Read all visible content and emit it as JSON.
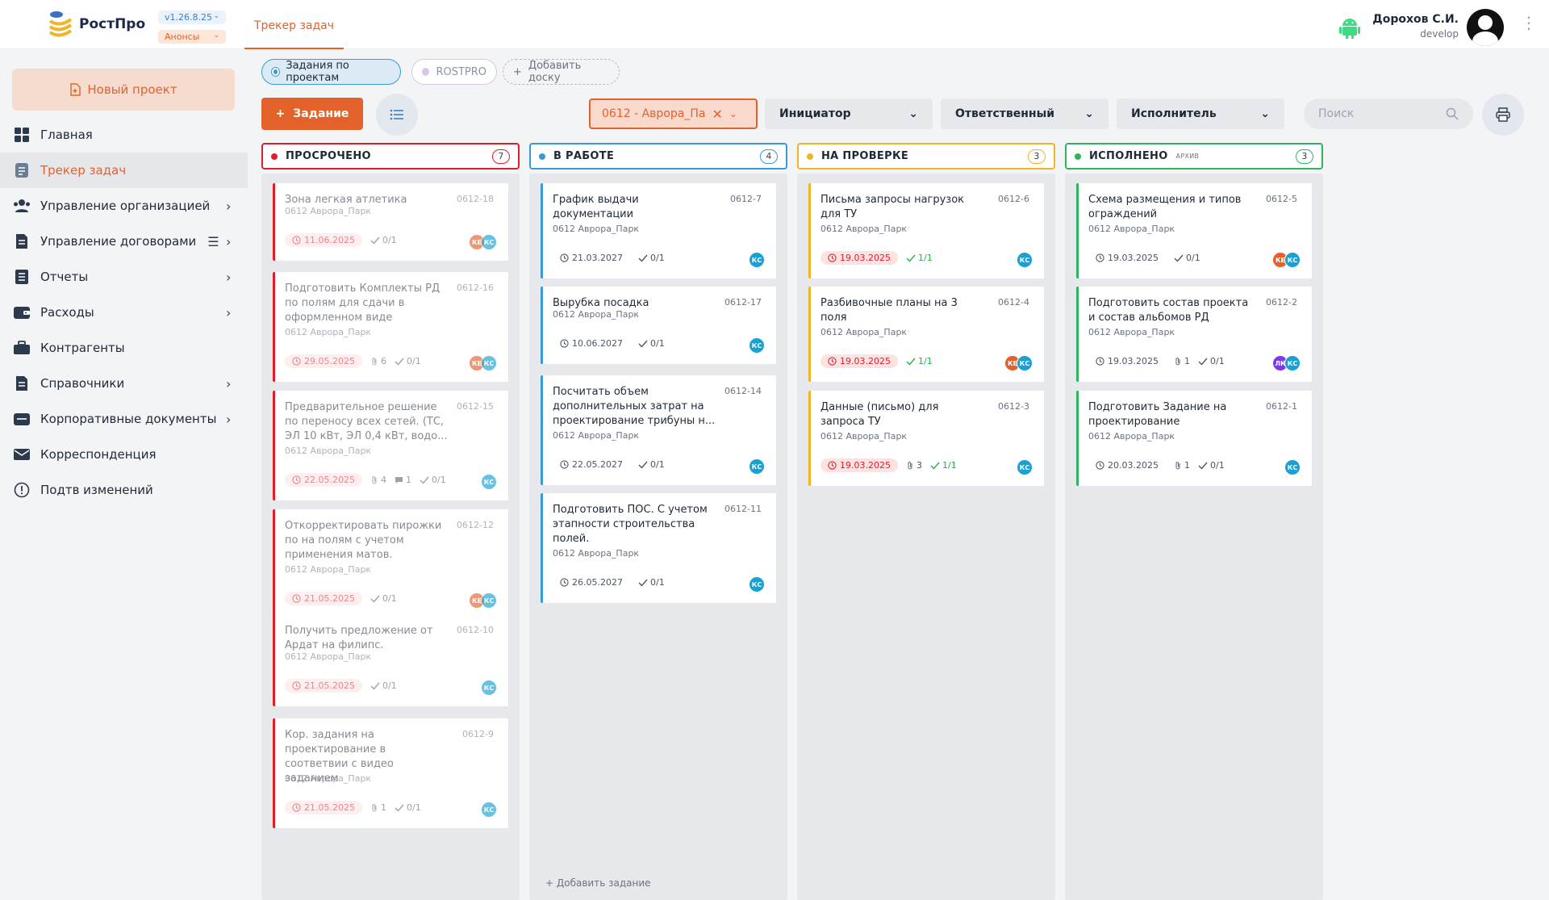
{
  "header": {
    "logo_text": "РостПро",
    "version": "v1.26.8.25",
    "announcements": "Анонсы",
    "tab": "Трекер задач",
    "user_name": "Дорохов С.И.",
    "user_role": "develop"
  },
  "sidebar": {
    "new_project": "Новый проект",
    "items": [
      {
        "label": "Главная",
        "icon": "grid-icon",
        "chevron": false
      },
      {
        "label": "Трекер задач",
        "icon": "tracker-icon",
        "chevron": false,
        "active": true
      },
      {
        "label": "Управление организацией",
        "icon": "users-icon",
        "chevron": true
      },
      {
        "label": "Управление договорами",
        "icon": "contracts-icon",
        "chevron": true,
        "extra_icon": "list-icon"
      },
      {
        "label": "Отчеты",
        "icon": "reports-icon",
        "chevron": true
      },
      {
        "label": "Расходы",
        "icon": "wallet-icon",
        "chevron": true
      },
      {
        "label": "Контрагенты",
        "icon": "briefcase-icon",
        "chevron": false
      },
      {
        "label": "Справочники",
        "icon": "book-icon",
        "chevron": true
      },
      {
        "label": "Корпоративные документы",
        "icon": "folder-icon",
        "chevron": true
      },
      {
        "label": "Корреспонденция",
        "icon": "mail-icon",
        "chevron": false
      },
      {
        "label": "Подтв изменений",
        "icon": "alert-icon",
        "chevron": false
      }
    ]
  },
  "boards": {
    "chips": [
      "Задания по проектам",
      "ROSTPRO",
      "Добавить доску"
    ]
  },
  "toolbar": {
    "add_task": "Задание",
    "project_filter": "0612 - Аврора_Па",
    "initiator": "Инициатор",
    "responsible": "Ответственный",
    "executor": "Исполнитель",
    "search_placeholder": "Поиск"
  },
  "colors": {
    "accent": "#e2622a",
    "overdue": "#e11d2a",
    "in_progress": "#3a9ad6",
    "review": "#f0b429",
    "done": "#2bb65e"
  },
  "columns": [
    {
      "title": "ПРОСРОЧЕНО",
      "count": "7",
      "color": "#e11d2a",
      "faded": true,
      "cards": [
        {
          "title": "Зона легкая атлетика",
          "code": "0612-18",
          "project": "0612 Аврора_Парк",
          "date": "11.06.2025",
          "date_red": true,
          "attach": "",
          "comments": "",
          "checks": "0/1",
          "checks_green": false,
          "avatars": [
            {
              "t": "КЕ",
              "c": "#e2622a"
            },
            {
              "t": "КС",
              "c": "#1aa0d3"
            }
          ]
        },
        {
          "title": "Подготовить Комплекты РД по полям для сдачи в оформленном виде",
          "code": "0612-16",
          "project": "0612 Аврора_Парк",
          "date": "29.05.2025",
          "date_red": true,
          "attach": "6",
          "comments": "",
          "checks": "0/1",
          "checks_green": false,
          "avatars": [
            {
              "t": "КЕ",
              "c": "#e2622a"
            },
            {
              "t": "КС",
              "c": "#1aa0d3"
            }
          ]
        },
        {
          "title": "Предварительное решение по переносу всех сетей. (ТС, ЭЛ 10 кВт, ЭЛ 0,4 кВт, водо...",
          "code": "0612-15",
          "project": "0612 Аврора_Парк",
          "date": "22.05.2025",
          "date_red": true,
          "attach": "4",
          "comments": "1",
          "checks": "0/1",
          "checks_green": false,
          "avatars": [
            {
              "t": "КС",
              "c": "#1aa0d3"
            }
          ]
        },
        {
          "title": "Откорректировать пирожки по на полям с учетом применения матов.",
          "code": "0612-12",
          "project": "0612 Аврора_Парк",
          "date": "21.05.2025",
          "date_red": true,
          "attach": "",
          "comments": "",
          "checks": "0/1",
          "checks_green": false,
          "avatars": [
            {
              "t": "КЕ",
              "c": "#e2622a"
            },
            {
              "t": "КС",
              "c": "#1aa0d3"
            }
          ]
        },
        {
          "title": "Получить предложение от Ардат на филипс.",
          "code": "0612-10",
          "project": "0612 Аврора_Парк",
          "date": "21.05.2025",
          "date_red": true,
          "attach": "",
          "comments": "",
          "checks": "0/1",
          "checks_green": false,
          "avatars": [
            {
              "t": "КС",
              "c": "#1aa0d3"
            }
          ]
        },
        {
          "title": "Кор. задания на проектирование в соответвии с видео заданием",
          "code": "0612-9",
          "project": "0612 Аврора_Парк",
          "date": "21.05.2025",
          "date_red": true,
          "attach": "1",
          "comments": "",
          "checks": "0/1",
          "checks_green": false,
          "avatars": [
            {
              "t": "КС",
              "c": "#1aa0d3"
            }
          ]
        }
      ]
    },
    {
      "title": "В РАБОТЕ",
      "count": "4",
      "color": "#3a9ad6",
      "faded": false,
      "add_task": "Добавить задание",
      "cards": [
        {
          "title": "График выдачи документации",
          "code": "0612-7",
          "project": "0612 Аврора_Парк",
          "date": "21.03.2027",
          "date_red": false,
          "attach": "",
          "comments": "",
          "checks": "0/1",
          "checks_green": false,
          "avatars": [
            {
              "t": "КС",
              "c": "#1aa0d3"
            }
          ]
        },
        {
          "title": "Вырубка посадка",
          "code": "0612-17",
          "project": "0612 Аврора_Парк",
          "date": "10.06.2027",
          "date_red": false,
          "attach": "",
          "comments": "",
          "checks": "0/1",
          "checks_green": false,
          "avatars": [
            {
              "t": "КС",
              "c": "#1aa0d3"
            }
          ]
        },
        {
          "title": "Посчитать объем дополнительных затрат на проектирование трибуны н...",
          "code": "0612-14",
          "project": "0612 Аврора_Парк",
          "date": "22.05.2027",
          "date_red": false,
          "attach": "",
          "comments": "",
          "checks": "0/1",
          "checks_green": false,
          "avatars": [
            {
              "t": "КС",
              "c": "#1aa0d3"
            }
          ]
        },
        {
          "title": "Подготовить ПОС. С учетом этапности строительства полей.",
          "code": "0612-11",
          "project": "0612 Аврора_Парк",
          "date": "26.05.2027",
          "date_red": false,
          "attach": "",
          "comments": "",
          "checks": "0/1",
          "checks_green": false,
          "avatars": [
            {
              "t": "КС",
              "c": "#1aa0d3"
            }
          ]
        }
      ]
    },
    {
      "title": "НА ПРОВЕРКЕ",
      "count": "3",
      "color": "#f0b429",
      "faded": false,
      "cards": [
        {
          "title": "Письма запросы нагрузок для ТУ",
          "code": "0612-6",
          "project": "0612 Аврора_Парк",
          "date": "19.03.2025",
          "date_red": true,
          "attach": "",
          "comments": "",
          "checks": "1/1",
          "checks_green": true,
          "avatars": [
            {
              "t": "КС",
              "c": "#1aa0d3"
            }
          ]
        },
        {
          "title": "Разбивочные планы на 3 поля",
          "code": "0612-4",
          "project": "0612 Аврора_Парк",
          "date": "19.03.2025",
          "date_red": true,
          "attach": "",
          "comments": "",
          "checks": "1/1",
          "checks_green": true,
          "avatars": [
            {
              "t": "КЕ",
              "c": "#e2622a"
            },
            {
              "t": "КС",
              "c": "#1aa0d3"
            }
          ]
        },
        {
          "title": "Данные (письмо) для запроса ТУ",
          "code": "0612-3",
          "project": "0612 Аврора_Парк",
          "date": "19.03.2025",
          "date_red": true,
          "attach": "3",
          "comments": "",
          "checks": "1/1",
          "checks_green": true,
          "avatars": [
            {
              "t": "КС",
              "c": "#1aa0d3"
            }
          ]
        }
      ]
    },
    {
      "title": "ИСПОЛНЕНО",
      "archive": "АРХИВ",
      "count": "3",
      "color": "#2bb65e",
      "faded": false,
      "cards": [
        {
          "title": "Схема размещения и типов ограждений",
          "code": "0612-5",
          "project": "0612 Аврора_Парк",
          "date": "19.03.2025",
          "date_red": false,
          "attach": "",
          "comments": "",
          "checks": "0/1",
          "checks_green": false,
          "avatars": [
            {
              "t": "КЕ",
              "c": "#e2622a"
            },
            {
              "t": "КС",
              "c": "#1aa0d3"
            }
          ]
        },
        {
          "title": "Подготовить состав проекта и состав альбомов РД",
          "code": "0612-2",
          "project": "0612 Аврора_Парк",
          "date": "19.03.2025",
          "date_red": false,
          "attach": "1",
          "comments": "",
          "checks": "0/1",
          "checks_green": false,
          "avatars": [
            {
              "t": "ЛК",
              "c": "#7c3aed"
            },
            {
              "t": "КС",
              "c": "#1aa0d3"
            }
          ]
        },
        {
          "title": "Подготовить Задание на проектирование",
          "code": "0612-1",
          "project": "0612 Аврора_Парк",
          "date": "20.03.2025",
          "date_red": false,
          "attach": "1",
          "comments": "",
          "checks": "0/1",
          "checks_green": false,
          "avatars": [
            {
              "t": "КС",
              "c": "#1aa0d3"
            }
          ]
        }
      ]
    }
  ]
}
